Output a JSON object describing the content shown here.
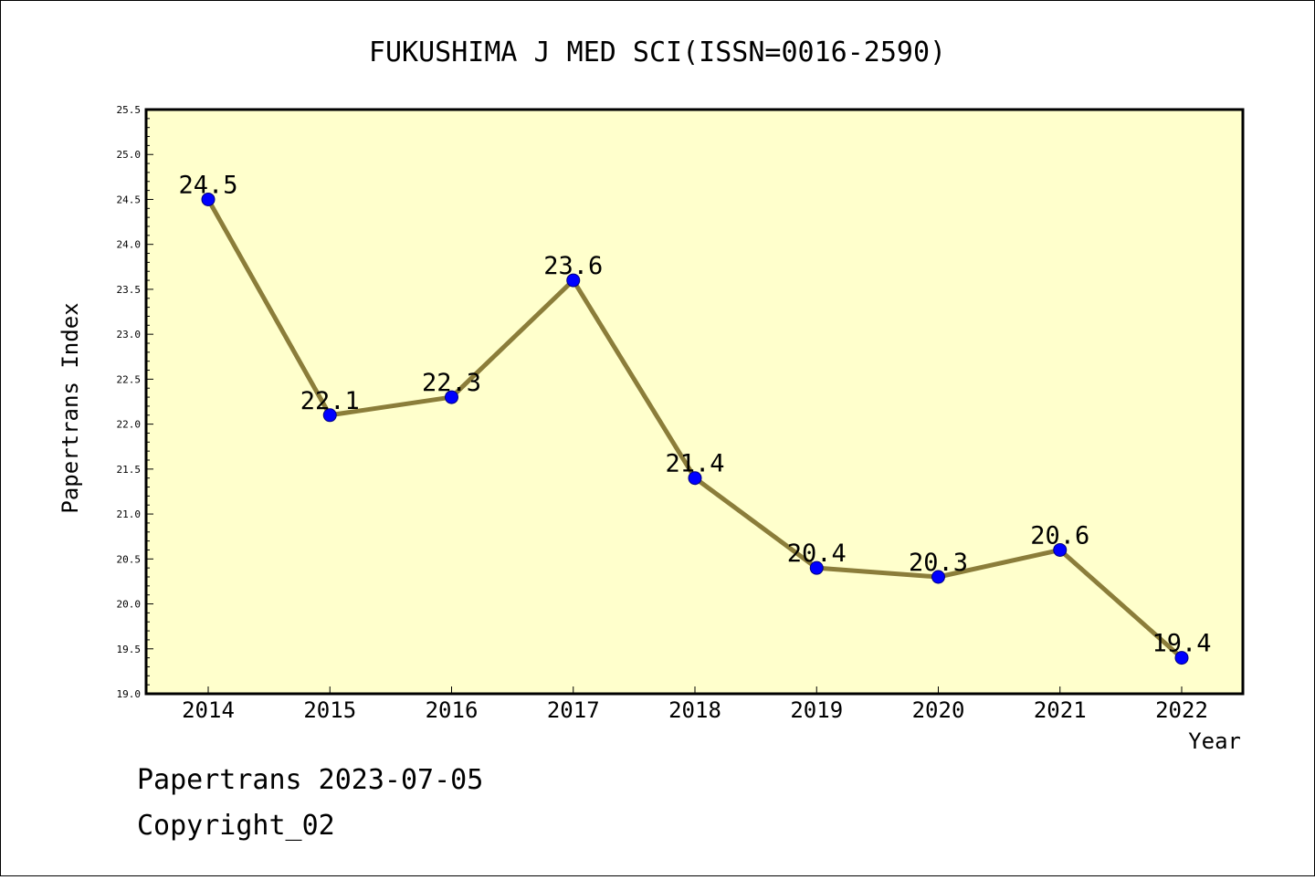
{
  "chart_data": {
    "type": "line",
    "title": "FUKUSHIMA J MED SCI(ISSN=0016-2590)",
    "xlabel": "Year",
    "ylabel": "Papertrans Index",
    "categories": [
      "2014",
      "2015",
      "2016",
      "2017",
      "2018",
      "2019",
      "2020",
      "2021",
      "2022"
    ],
    "series": [
      {
        "values": [
          24.5,
          22.1,
          22.3,
          23.6,
          21.4,
          20.4,
          20.3,
          20.6,
          19.4
        ],
        "labels": [
          "24.5",
          "22.1",
          "22.3",
          "23.6",
          "21.4",
          "20.4",
          "20.3",
          "20.6",
          "19.4"
        ]
      }
    ],
    "ylim": [
      19.0,
      25.5
    ],
    "yticks": [
      "19.0",
      "19.5",
      "20.0",
      "20.5",
      "21.0",
      "21.5",
      "22.0",
      "22.5",
      "23.0",
      "23.5",
      "24.0",
      "24.5",
      "25.0",
      "25.5"
    ],
    "grid": false,
    "colors": {
      "plot_background": "#ffffcc",
      "line": "#8b7d3a",
      "marker_fill": "#0000ff",
      "marker_stroke": "#000080"
    }
  },
  "footer": {
    "line1": "Papertrans 2023-07-05",
    "line2": "Copyright_02"
  }
}
